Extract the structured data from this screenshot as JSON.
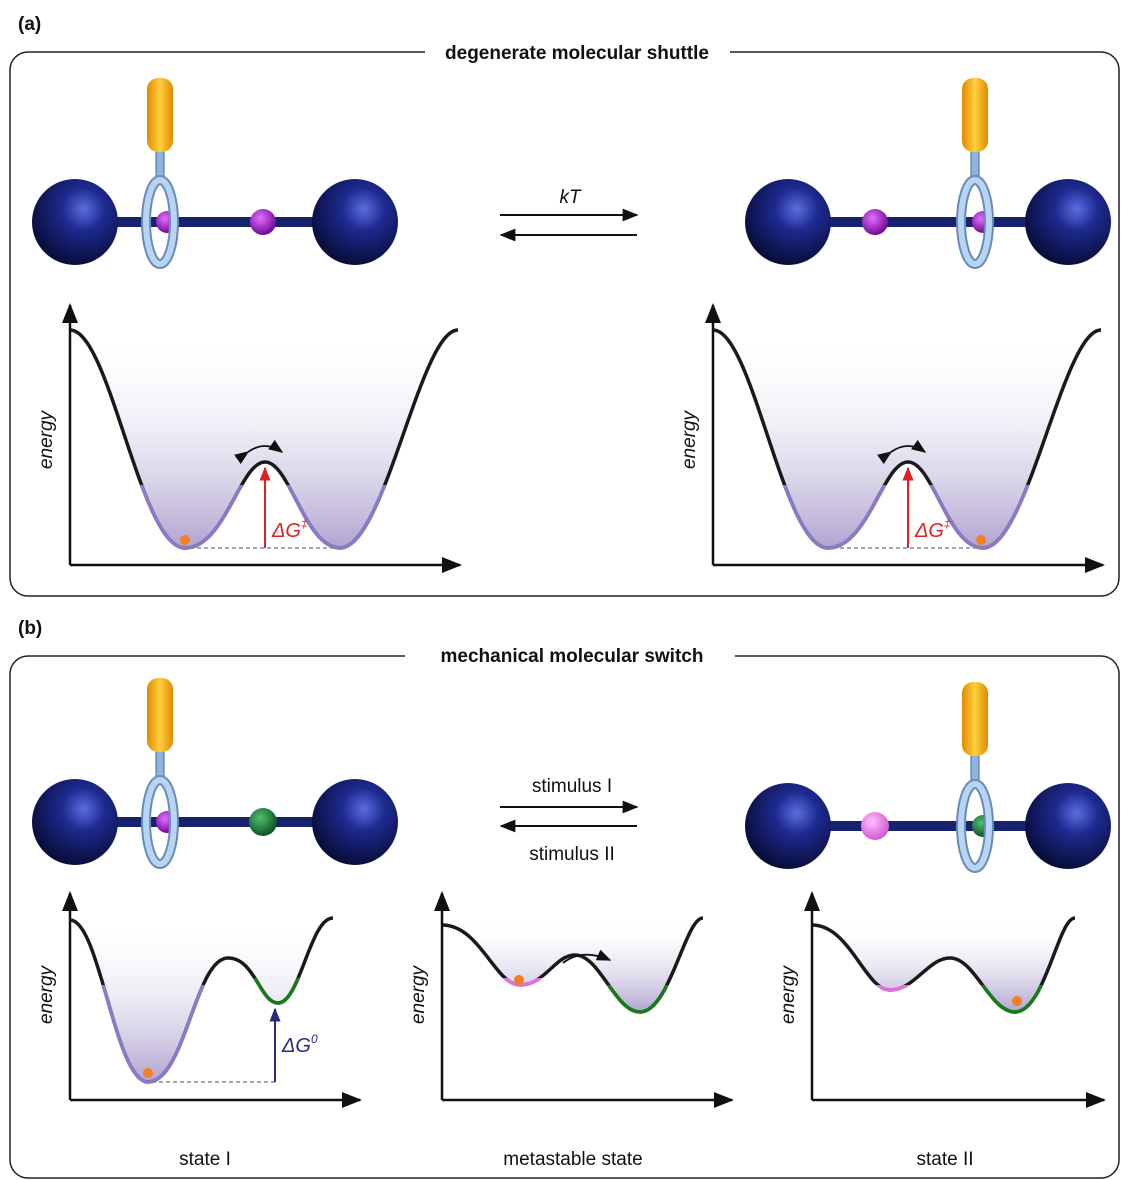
{
  "panels": [
    {
      "label": "(a)",
      "title": "degenerate molecular shuttle",
      "arrow_labels": [
        "kT"
      ],
      "plots": [
        {
          "axis_label": "energy",
          "barrier": {
            "symbol": "ΔG",
            "superscript": "‡"
          }
        },
        {
          "axis_label": "energy",
          "barrier": {
            "symbol": "ΔG",
            "superscript": "‡"
          }
        }
      ]
    },
    {
      "label": "(b)",
      "title": "mechanical molecular switch",
      "arrow_labels": [
        "stimulus I",
        "stimulus II"
      ],
      "plots": [
        {
          "axis_label": "energy",
          "barrier": {
            "symbol": "ΔG",
            "superscript": "0"
          },
          "caption": "state I"
        },
        {
          "axis_label": "energy",
          "caption": "metastable state"
        },
        {
          "axis_label": "energy",
          "caption": "state II"
        }
      ]
    }
  ]
}
